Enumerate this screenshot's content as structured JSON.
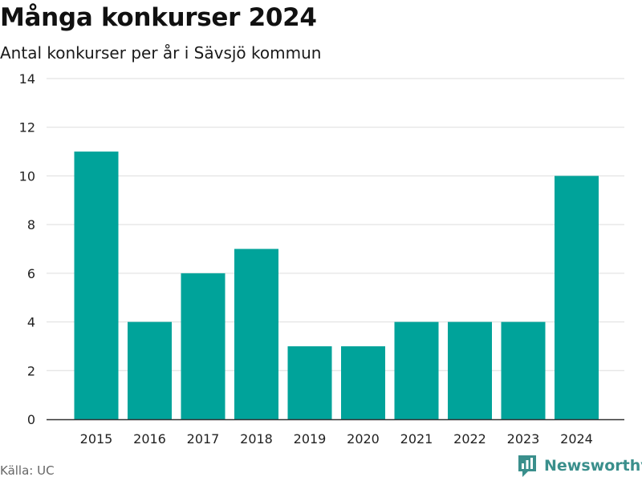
{
  "title": "Många konkurser 2024",
  "subtitle": "Antal konkurser per år i Sävsjö kommun",
  "source": "Källa: UC",
  "brand": {
    "name": "Newsworthy",
    "icon": "bar-chart-logo-icon",
    "color": "#3a8f8c"
  },
  "chart_data": {
    "type": "bar",
    "title": "Många konkurser 2024",
    "subtitle": "Antal konkurser per år i Sävsjö kommun",
    "xlabel": "",
    "ylabel": "",
    "categories": [
      "2015",
      "2016",
      "2017",
      "2018",
      "2019",
      "2020",
      "2021",
      "2022",
      "2023",
      "2024"
    ],
    "values": [
      11,
      4,
      6,
      7,
      3,
      3,
      4,
      4,
      4,
      10
    ],
    "ylim": [
      0,
      14
    ],
    "yticks": [
      0,
      2,
      4,
      6,
      8,
      10,
      12,
      14
    ],
    "grid": true,
    "legend": "none",
    "bar_color": "#00a39a"
  }
}
